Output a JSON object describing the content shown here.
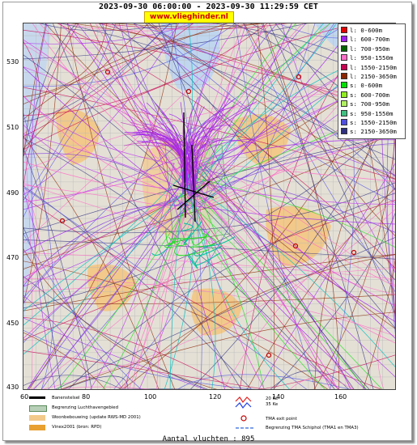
{
  "header": {
    "title": "2023-09-30 06:00:00 - 2023-09-30 11:29:59 CET",
    "site": "www.vlieghinder.nl"
  },
  "axes": {
    "x_ticks": [
      "60",
      "80",
      "100",
      "120",
      "140",
      "160"
    ],
    "y_ticks": [
      "530",
      "510",
      "490",
      "470",
      "450",
      "430"
    ]
  },
  "legend": {
    "items": [
      {
        "label": "l: 0-600m",
        "color": "#e00000"
      },
      {
        "label": "l: 600-700m",
        "color": "#a020f0"
      },
      {
        "label": "l: 700-950m",
        "color": "#006400"
      },
      {
        "label": "l: 950-1550m",
        "color": "#ff6ec7"
      },
      {
        "label": "l: 1550-2150m",
        "color": "#c80050"
      },
      {
        "label": "l: 2150-3650m",
        "color": "#8b2500"
      },
      {
        "label": "s: 0-600m",
        "color": "#00e000"
      },
      {
        "label": "s: 600-700m",
        "color": "#90ee20"
      },
      {
        "label": "s: 700-950m",
        "color": "#b0f060"
      },
      {
        "label": "s: 950-1550m",
        "color": "#40c080"
      },
      {
        "label": "s: 1550-2150m",
        "color": "#5050e0"
      },
      {
        "label": "s: 2150-3650m",
        "color": "#303080"
      }
    ]
  },
  "bottom_legend": {
    "runway": "Banenstelsel",
    "airport_boundary": "Begrenzing Luchthavengebied",
    "housing": "Woonbebouwing (update RWS-MD 2001)",
    "vinex": "Vinex2001 (bron: RPD)",
    "ke20": "20 Ke",
    "ke35": "35 Ke",
    "tma_exit": "TMA exit point",
    "tma_boundary": "Begrenzing TMA Schiphol  (TMA1 en TMA3)"
  },
  "footer": {
    "count": "Aantal vluchten : 895"
  }
}
